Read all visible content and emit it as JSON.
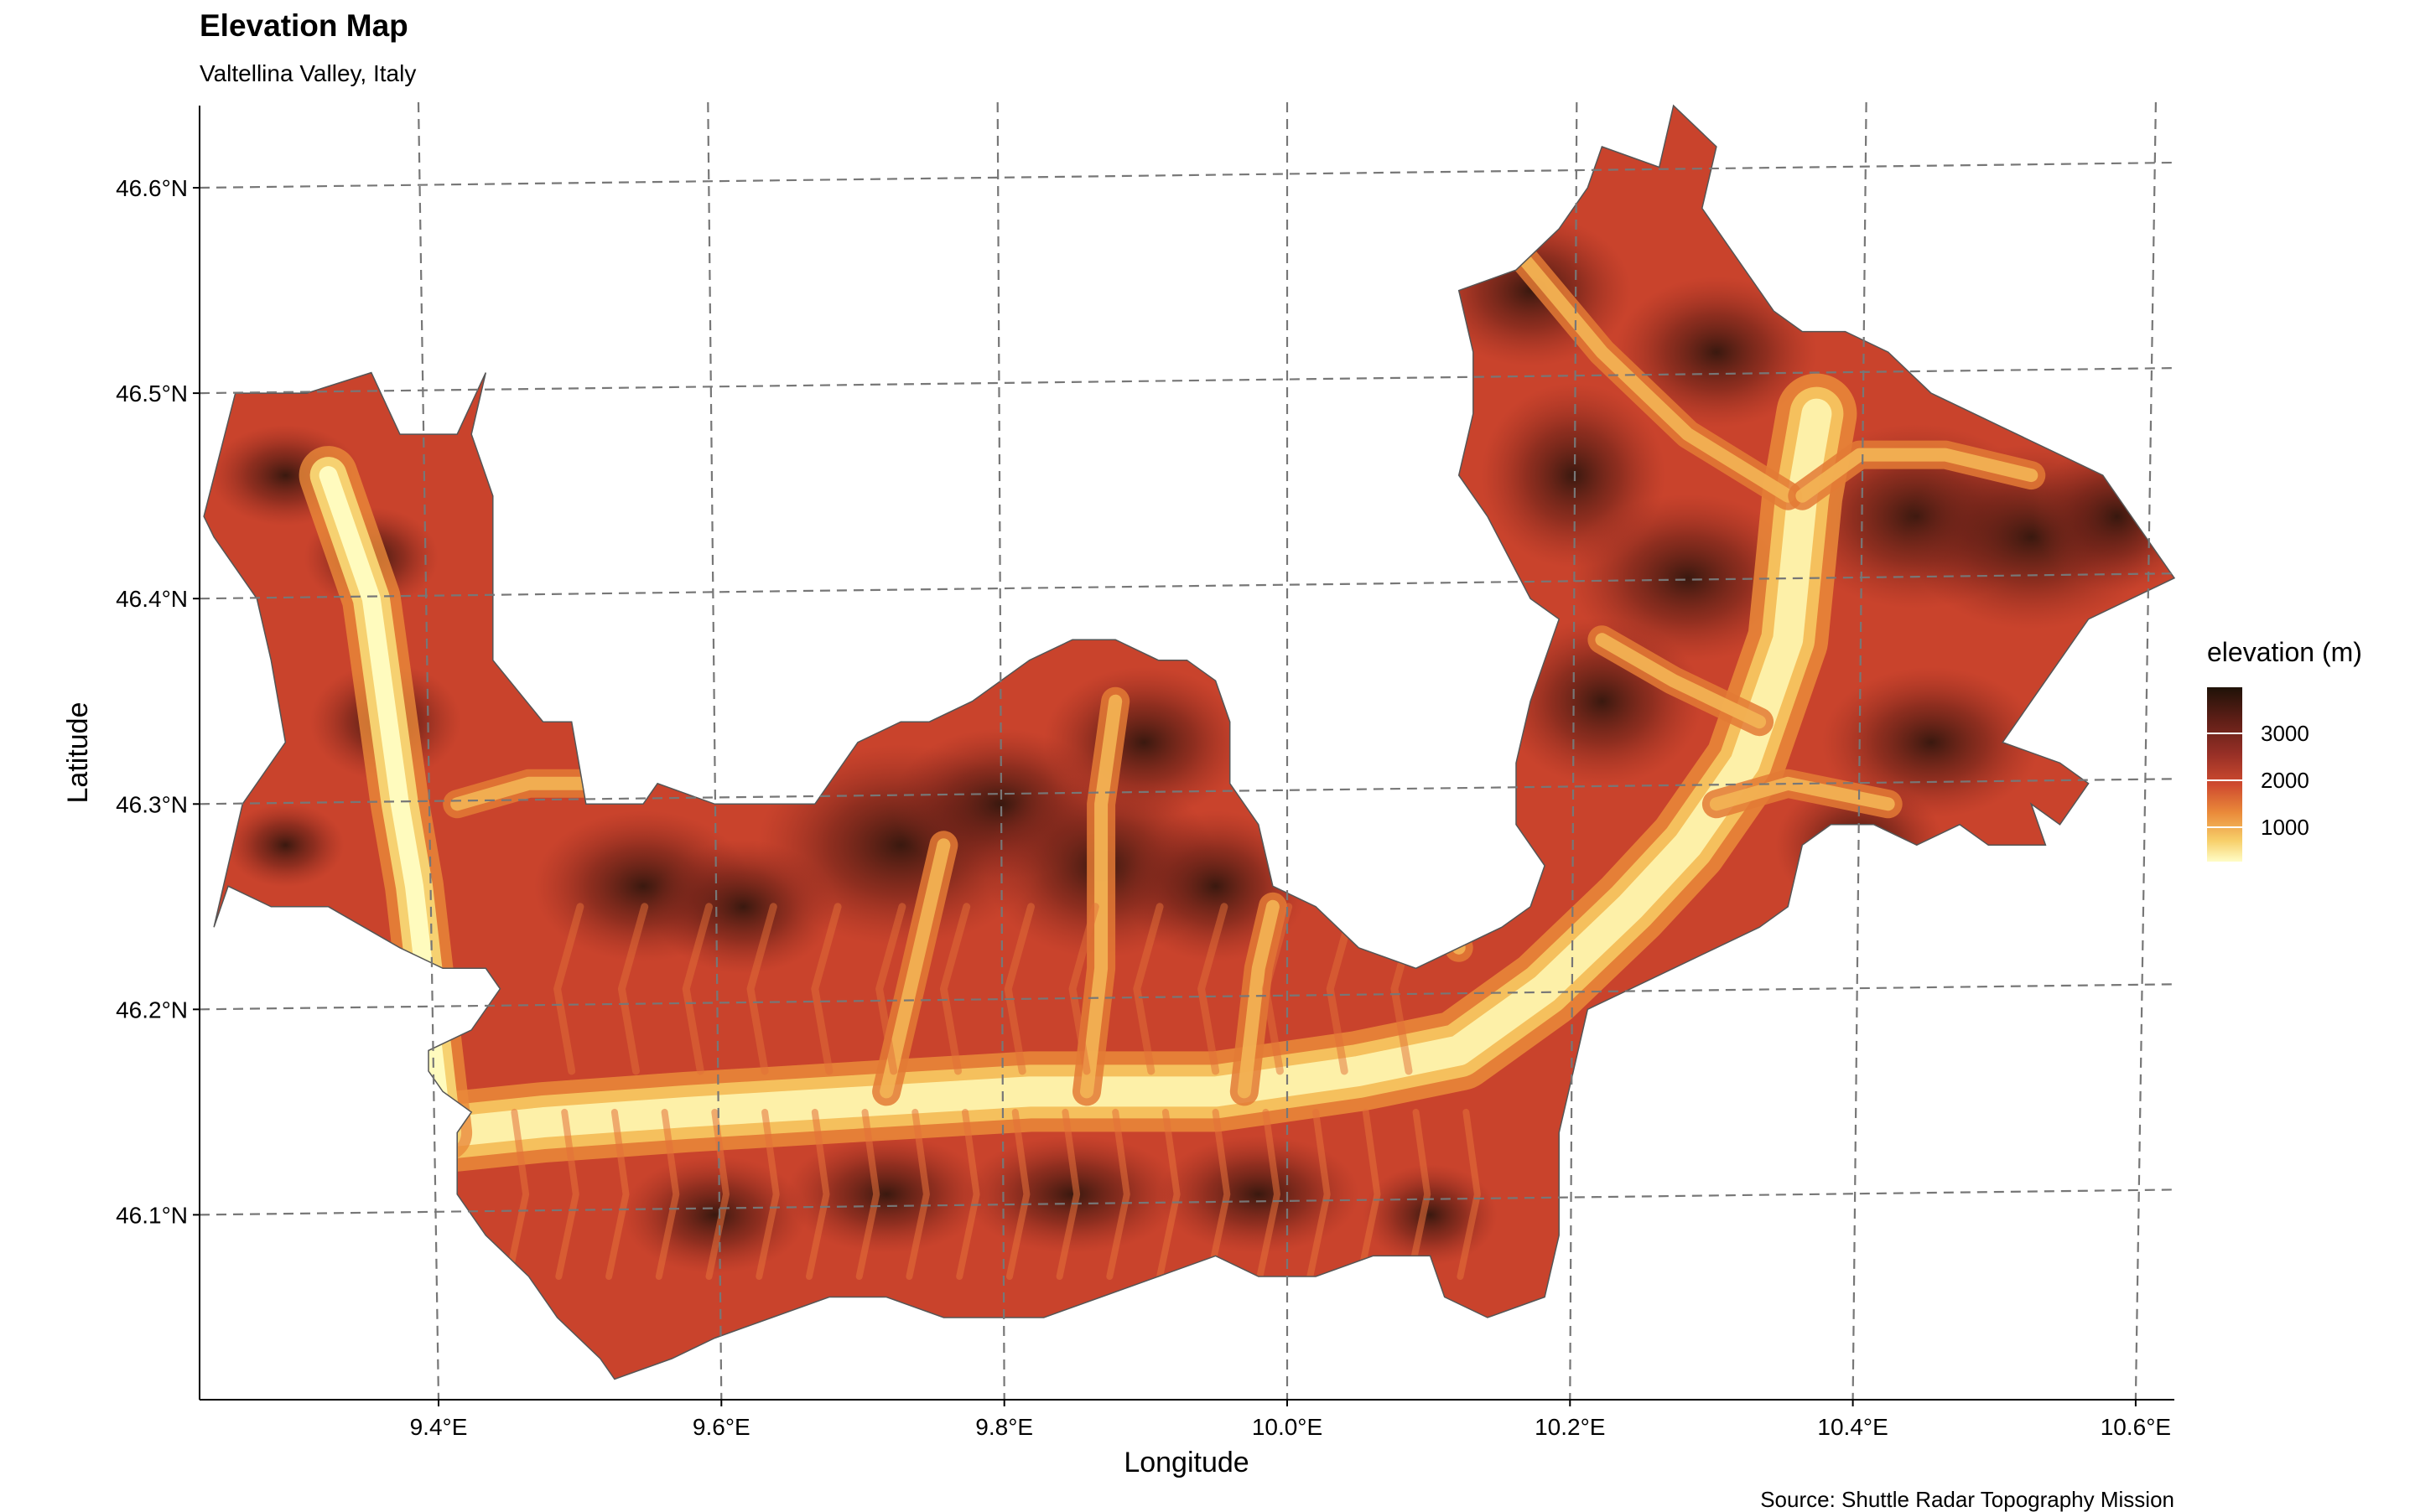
{
  "title": "Elevation Map",
  "subtitle": "Valtellina Valley, Italy",
  "caption": "Source: Shuttle Radar Topography Mission",
  "colors": {
    "low": "#fffdc6",
    "mid": "#e0622f",
    "high": "#1f1208",
    "grid": "#777777"
  },
  "chart_data": {
    "type": "heatmap",
    "xlabel": "Longitude",
    "ylabel": "Latitude",
    "xlim": [
      9.24,
      10.62
    ],
    "ylim": [
      46.01,
      46.64
    ],
    "x_ticks": [
      9.4,
      9.6,
      9.8,
      10.0,
      10.2,
      10.4,
      10.6
    ],
    "x_tick_labels": [
      "9.4°E",
      "9.6°E",
      "9.8°E",
      "10.0°E",
      "10.2°E",
      "10.4°E",
      "10.6°E"
    ],
    "y_ticks": [
      46.1,
      46.2,
      46.3,
      46.4,
      46.5,
      46.6
    ],
    "y_tick_labels": [
      "46.1°N",
      "46.2°N",
      "46.3°N",
      "46.4°N",
      "46.5°N",
      "46.6°N"
    ],
    "grid": "dashed graticule",
    "legend": {
      "title": "elevation (m)",
      "position": "right",
      "breaks": [
        1000,
        2000,
        3000
      ],
      "break_labels": [
        "1000",
        "2000",
        "3000"
      ],
      "range": [
        200,
        3700
      ]
    }
  }
}
